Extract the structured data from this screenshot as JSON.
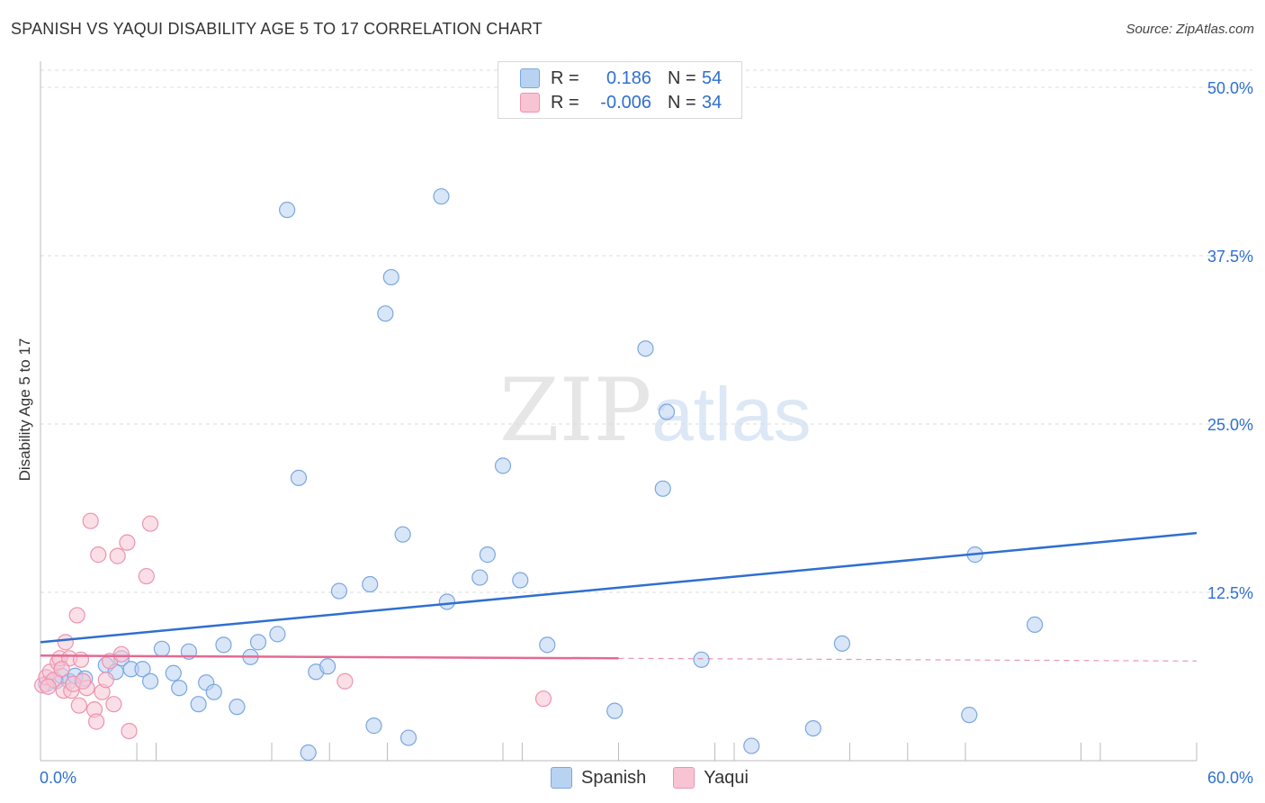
{
  "title": "SPANISH VS YAQUI DISABILITY AGE 5 TO 17 CORRELATION CHART",
  "source": "Source: ZipAtlas.com",
  "watermark": {
    "zip": "ZIP",
    "atlas": "atlas"
  },
  "legend": {
    "rows": [
      {
        "r_label": "R =",
        "r_value": "0.186",
        "n_label": "N =",
        "n_value": "54",
        "color": "#b8d2f2",
        "border": "#7aa7e0"
      },
      {
        "r_label": "R =",
        "r_value": "-0.006",
        "n_label": "N =",
        "n_value": "34",
        "color": "#f8c4d4",
        "border": "#ec93b0"
      }
    ]
  },
  "bottom_legend": {
    "spanish": "Spanish",
    "yaqui": "Yaqui"
  },
  "chart_data": {
    "type": "scatter",
    "title": "SPANISH VS YAQUI DISABILITY AGE 5 TO 17 CORRELATION CHART",
    "xlabel": "",
    "ylabel": "Disability Age 5 to 17",
    "xlim": [
      0,
      60
    ],
    "ylim": [
      0,
      50
    ],
    "x_tick_labels": [
      "0.0%",
      "60.0%"
    ],
    "y_ticks": [
      12.5,
      25.0,
      37.5,
      50.0
    ],
    "y_tick_labels": [
      "12.5%",
      "25.0%",
      "37.5%",
      "50.0%"
    ],
    "grid": true,
    "series": [
      {
        "name": "Spanish",
        "color": "#7aa7e0",
        "fill": "#b8d2f2",
        "line_color": "#2f6fd0",
        "trend": {
          "x0": 0,
          "y0": 8.8,
          "x1": 60,
          "y1": 16.9
        },
        "points": [
          [
            0.8,
            5.9
          ],
          [
            1.1,
            6.3
          ],
          [
            1.5,
            5.9
          ],
          [
            1.8,
            6.3
          ],
          [
            2.3,
            6.1
          ],
          [
            3.4,
            7.1
          ],
          [
            3.9,
            6.6
          ],
          [
            4.2,
            7.6
          ],
          [
            4.7,
            6.8
          ],
          [
            5.3,
            6.8
          ],
          [
            5.7,
            5.9
          ],
          [
            6.3,
            8.3
          ],
          [
            6.9,
            6.5
          ],
          [
            7.2,
            5.4
          ],
          [
            7.7,
            8.1
          ],
          [
            8.2,
            4.2
          ],
          [
            8.6,
            5.8
          ],
          [
            9.0,
            5.1
          ],
          [
            9.5,
            8.6
          ],
          [
            10.2,
            4.0
          ],
          [
            10.9,
            7.7
          ],
          [
            11.3,
            8.8
          ],
          [
            12.3,
            9.4
          ],
          [
            12.8,
            40.9
          ],
          [
            13.4,
            21.0
          ],
          [
            13.9,
            0.6
          ],
          [
            14.3,
            6.6
          ],
          [
            14.9,
            7.0
          ],
          [
            15.5,
            12.6
          ],
          [
            17.1,
            13.1
          ],
          [
            17.3,
            2.6
          ],
          [
            17.9,
            33.2
          ],
          [
            18.2,
            35.9
          ],
          [
            18.8,
            16.8
          ],
          [
            19.1,
            1.7
          ],
          [
            20.8,
            41.9
          ],
          [
            21.1,
            11.8
          ],
          [
            22.8,
            13.6
          ],
          [
            23.2,
            15.3
          ],
          [
            24.0,
            21.9
          ],
          [
            24.9,
            13.4
          ],
          [
            26.3,
            8.6
          ],
          [
            29.8,
            3.7
          ],
          [
            31.4,
            30.6
          ],
          [
            32.3,
            20.2
          ],
          [
            32.5,
            25.9
          ],
          [
            34.3,
            7.5
          ],
          [
            36.9,
            1.1
          ],
          [
            40.1,
            2.4
          ],
          [
            41.6,
            8.7
          ],
          [
            48.2,
            3.4
          ],
          [
            48.5,
            15.3
          ],
          [
            51.6,
            10.1
          ],
          [
            0.3,
            5.7
          ]
        ]
      },
      {
        "name": "Yaqui",
        "color": "#ec93b0",
        "fill": "#f8c4d4",
        "line_color": "#e46a91",
        "trend": {
          "x0": 0,
          "y0": 7.8,
          "x1": 30,
          "y1": 7.6,
          "dashed_to_x": 60,
          "dashed_y": 7.4
        },
        "points": [
          [
            0.1,
            5.6
          ],
          [
            0.3,
            6.2
          ],
          [
            0.5,
            6.6
          ],
          [
            0.7,
            6.0
          ],
          [
            0.9,
            7.3
          ],
          [
            1.0,
            7.6
          ],
          [
            1.2,
            5.2
          ],
          [
            1.3,
            8.8
          ],
          [
            1.5,
            7.6
          ],
          [
            1.6,
            5.2
          ],
          [
            1.7,
            5.7
          ],
          [
            1.9,
            10.8
          ],
          [
            2.0,
            4.1
          ],
          [
            2.1,
            7.5
          ],
          [
            2.4,
            5.4
          ],
          [
            2.6,
            17.8
          ],
          [
            2.8,
            3.8
          ],
          [
            2.9,
            2.9
          ],
          [
            3.0,
            15.3
          ],
          [
            3.2,
            5.1
          ],
          [
            3.4,
            6.0
          ],
          [
            3.6,
            7.4
          ],
          [
            3.8,
            4.2
          ],
          [
            4.0,
            15.2
          ],
          [
            4.2,
            7.9
          ],
          [
            4.5,
            16.2
          ],
          [
            4.6,
            2.2
          ],
          [
            5.5,
            13.7
          ],
          [
            5.7,
            17.6
          ],
          [
            15.8,
            5.9
          ],
          [
            26.1,
            4.6
          ],
          [
            0.4,
            5.5
          ],
          [
            1.1,
            6.8
          ],
          [
            2.2,
            5.9
          ]
        ]
      }
    ]
  }
}
